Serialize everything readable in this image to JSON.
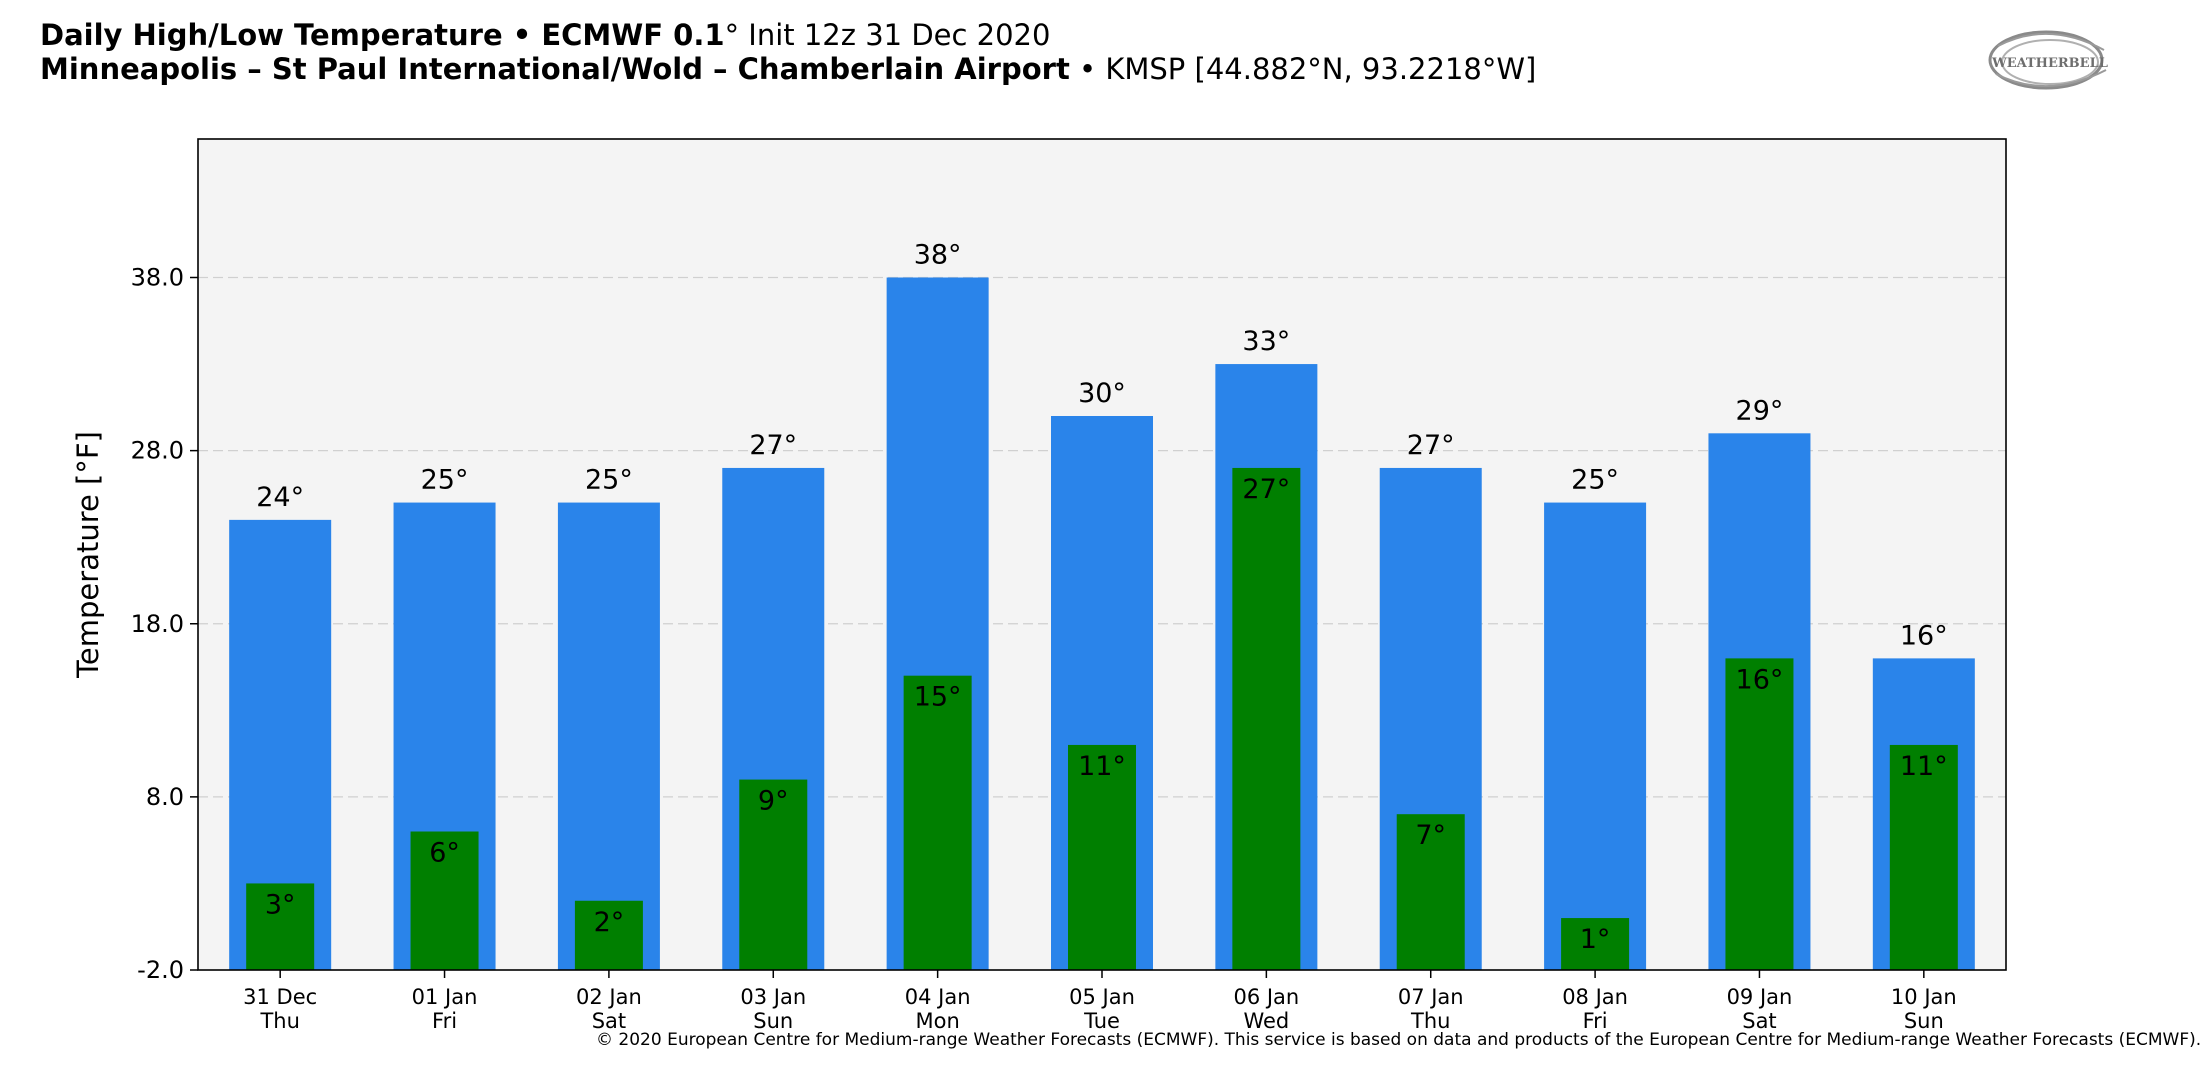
{
  "header": {
    "line1_bold": "Daily High/Low Temperature • ECMWF 0.1",
    "line1_degree": "°",
    "line1_rest": " Init 12z 31 Dec 2020",
    "line2_bold": "Minneapolis – St Paul International/Wold – Chamberlain Airport",
    "line2_rest": " • KMSP [44.882°N, 93.2218°W]"
  },
  "logo": {
    "text": "WEATHERBELL",
    "color": "#7a7a7a"
  },
  "credit": "© 2020 European Centre for Medium-range Weather Forecasts (ECMWF). This service is based on data and products of the European Centre for Medium-range Weather Forecasts (ECMWF).",
  "colors": {
    "high": "#2a84ea",
    "low": "#007f00",
    "plot_bg": "#f4f4f4",
    "grid": "#d0d0d0"
  },
  "chart_data": {
    "type": "bar",
    "title": "",
    "ylabel": "Temperature [°F]",
    "ylim": [
      -2,
      46
    ],
    "yticks": [
      "-2.0",
      "8.0",
      "18.0",
      "28.0",
      "38.0"
    ],
    "grid": "horizontal dashed",
    "categories": [
      [
        "31 Dec",
        "Thu"
      ],
      [
        "01 Jan",
        "Fri"
      ],
      [
        "02 Jan",
        "Sat"
      ],
      [
        "03 Jan",
        "Sun"
      ],
      [
        "04 Jan",
        "Mon"
      ],
      [
        "05 Jan",
        "Tue"
      ],
      [
        "06 Jan",
        "Wed"
      ],
      [
        "07 Jan",
        "Thu"
      ],
      [
        "08 Jan",
        "Fri"
      ],
      [
        "09 Jan",
        "Sat"
      ],
      [
        "10 Jan",
        "Sun"
      ]
    ],
    "series": [
      {
        "key": "high",
        "values": [
          24,
          25,
          25,
          27,
          38,
          30,
          33,
          27,
          25,
          29,
          16
        ],
        "labels": [
          "24°",
          "25°",
          "25°",
          "27°",
          "38°",
          "30°",
          "33°",
          "27°",
          "25°",
          "29°",
          "16°"
        ]
      },
      {
        "key": "low",
        "values": [
          3,
          6,
          2,
          9,
          15,
          11,
          27,
          7,
          1,
          16,
          11
        ],
        "labels": [
          "3°",
          "6°",
          "2°",
          "9°",
          "15°",
          "11°",
          "27°",
          "7°",
          "1°",
          "16°",
          "11°"
        ]
      }
    ]
  }
}
